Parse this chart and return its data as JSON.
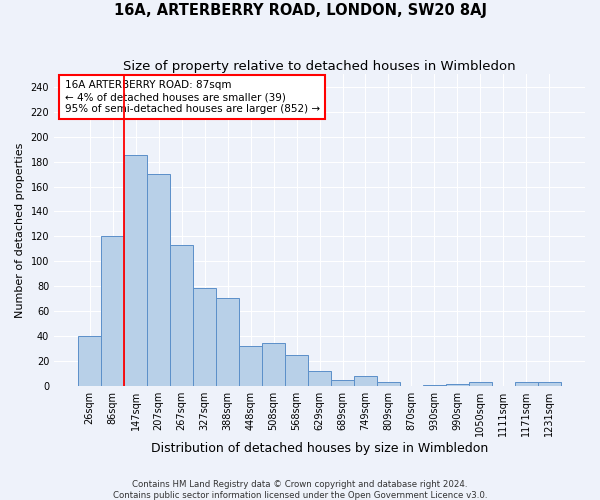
{
  "title": "16A, ARTERBERRY ROAD, LONDON, SW20 8AJ",
  "subtitle": "Size of property relative to detached houses in Wimbledon",
  "xlabel": "Distribution of detached houses by size in Wimbledon",
  "ylabel": "Number of detached properties",
  "categories": [
    "26sqm",
    "86sqm",
    "147sqm",
    "207sqm",
    "267sqm",
    "327sqm",
    "388sqm",
    "448sqm",
    "508sqm",
    "568sqm",
    "629sqm",
    "689sqm",
    "749sqm",
    "809sqm",
    "870sqm",
    "930sqm",
    "990sqm",
    "1050sqm",
    "1111sqm",
    "1171sqm",
    "1231sqm"
  ],
  "values": [
    40,
    120,
    185,
    170,
    113,
    79,
    71,
    32,
    35,
    25,
    12,
    5,
    8,
    3,
    0,
    1,
    2,
    3,
    0,
    3,
    3
  ],
  "bar_color": "#b8d0e8",
  "bar_edge_color": "#5b8fc9",
  "red_line_x": 1.5,
  "annotation_text_lines": [
    "16A ARTERBERRY ROAD: 87sqm",
    "← 4% of detached houses are smaller (39)",
    "95% of semi-detached houses are larger (852) →"
  ],
  "ylim": [
    0,
    250
  ],
  "yticks": [
    0,
    20,
    40,
    60,
    80,
    100,
    120,
    140,
    160,
    180,
    200,
    220,
    240
  ],
  "footnote1": "Contains HM Land Registry data © Crown copyright and database right 2024.",
  "footnote2": "Contains public sector information licensed under the Open Government Licence v3.0.",
  "background_color": "#eef2fa",
  "grid_color": "#ffffff",
  "title_fontsize": 10.5,
  "subtitle_fontsize": 9.5,
  "ylabel_fontsize": 8,
  "xlabel_fontsize": 9,
  "tick_fontsize": 7,
  "annot_fontsize": 7.5,
  "footnote_fontsize": 6.2
}
